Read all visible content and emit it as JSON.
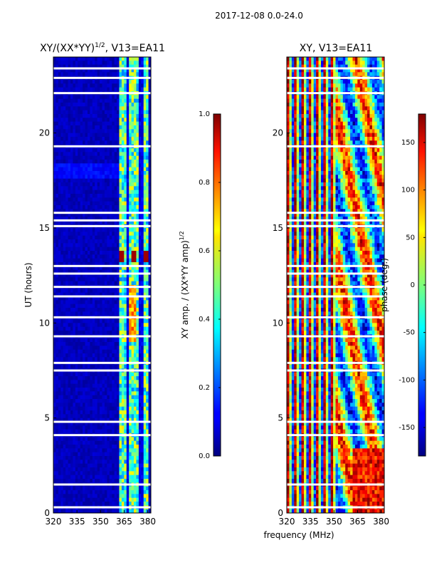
{
  "figure_title": "2017-12-08 0.0-24.0",
  "shared_xlabel": "frequency (MHz)",
  "chart_data": [
    {
      "type": "heatmap",
      "title_main": "XY/(XX*YY)",
      "title_sup": "1/2",
      "title_tail": ", V13=EA11",
      "xlabel": "",
      "ylabel": "UT (hours)",
      "xlim": [
        320,
        382
      ],
      "ylim": [
        0,
        24
      ],
      "xticks": [
        320,
        335,
        350,
        365,
        380
      ],
      "yticks": [
        0,
        5,
        10,
        15,
        20
      ],
      "colorbar": {
        "label_main": "XY amp. / (XX*YY amp)",
        "label_sup": "1/2",
        "range": [
          0.0,
          1.0
        ],
        "ticks": [
          "0.0",
          "0.2",
          "0.4",
          "0.6",
          "0.8",
          "1.0"
        ],
        "cmap": "jet"
      },
      "gap_rows_hours": [
        0.3,
        1.5,
        4.1,
        4.8,
        7.5,
        7.9,
        9.3,
        10.3,
        11.4,
        11.9,
        12.6,
        13.0,
        15.1,
        15.4,
        15.8,
        19.3,
        22.1,
        22.9,
        23.4
      ],
      "high_band_MHz": [
        362,
        381
      ],
      "high_patch": {
        "hours": [
          13.2,
          13.8
        ],
        "value": 0.97
      }
    },
    {
      "type": "heatmap",
      "title": "XY, V13=EA11",
      "xlabel": "",
      "ylabel": "",
      "xlim": [
        320,
        382
      ],
      "ylim": [
        0,
        24
      ],
      "xticks": [
        320,
        335,
        350,
        365,
        380
      ],
      "yticks": [
        0,
        5,
        10,
        15,
        20
      ],
      "colorbar": {
        "label": "phase (deg.)",
        "range": [
          -180,
          180
        ],
        "ticks": [
          -150,
          -100,
          -50,
          0,
          50,
          100,
          150
        ],
        "cmap": "jet"
      },
      "gap_rows_hours": [
        0.3,
        1.5,
        4.1,
        4.8,
        7.5,
        7.9,
        9.3,
        10.3,
        11.4,
        11.9,
        12.6,
        13.0,
        15.1,
        15.4,
        15.8,
        19.3,
        22.1,
        22.9,
        23.4
      ]
    }
  ]
}
